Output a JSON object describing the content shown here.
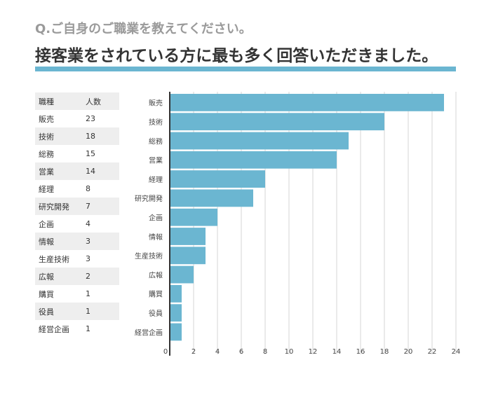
{
  "question": "Q.ご自身のご職業を教えてください。",
  "answer": "接客業をされている方に最も多く回答いただきました。",
  "accent_color": "#6bb6d1",
  "table": {
    "headers": [
      "職種",
      "人数"
    ],
    "rows": [
      [
        "販売",
        "23"
      ],
      [
        "技術",
        "18"
      ],
      [
        "総務",
        "15"
      ],
      [
        "営業",
        "14"
      ],
      [
        "経理",
        "8"
      ],
      [
        "研究開発",
        "7"
      ],
      [
        "企画",
        "4"
      ],
      [
        "情報",
        "3"
      ],
      [
        "生産技術",
        "3"
      ],
      [
        "広報",
        "2"
      ],
      [
        "購買",
        "1"
      ],
      [
        "役員",
        "1"
      ],
      [
        "経営企画",
        "1"
      ]
    ]
  },
  "chart_data": {
    "type": "bar",
    "orientation": "horizontal",
    "categories": [
      "販売",
      "技術",
      "総務",
      "営業",
      "経理",
      "研究開発",
      "企画",
      "情報",
      "生産技術",
      "広報",
      "購買",
      "役員",
      "経営企画"
    ],
    "values": [
      23,
      18,
      15,
      14,
      8,
      7,
      4,
      3,
      3,
      2,
      1,
      1,
      1
    ],
    "xlim": [
      0,
      24
    ],
    "xticks": [
      "0",
      "2",
      "4",
      "6",
      "8",
      "10",
      "12",
      "14",
      "16",
      "18",
      "20",
      "22",
      "24"
    ],
    "grid": true,
    "bar_color": "#6bb6d1"
  }
}
